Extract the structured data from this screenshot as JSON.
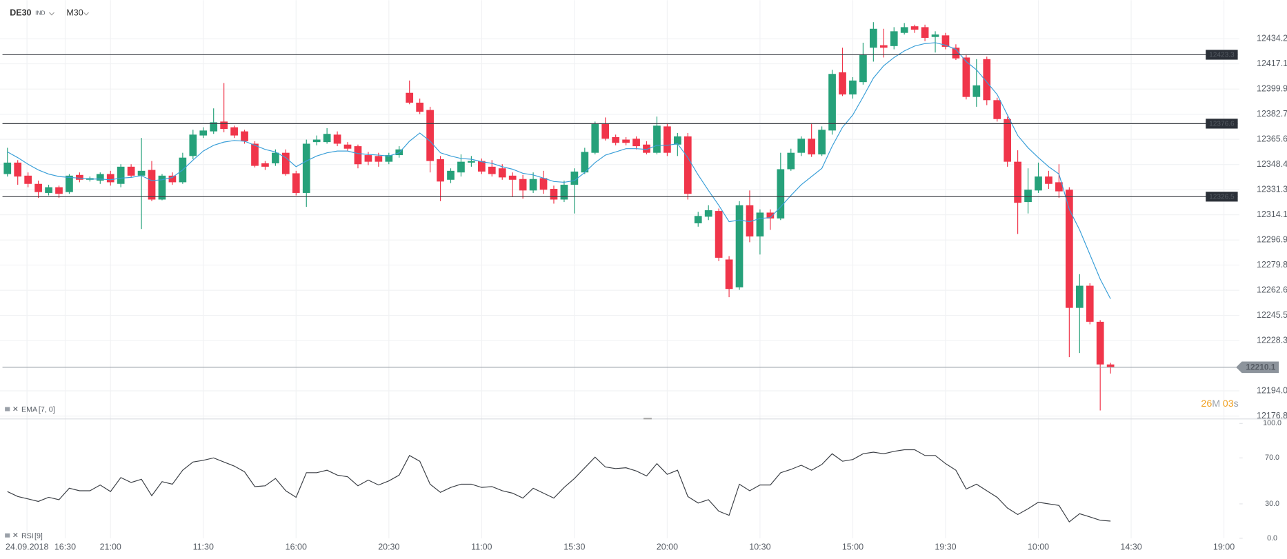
{
  "header": {
    "symbol": "DE30",
    "market": "IND",
    "timeframe": "M30"
  },
  "countdown": [
    "26",
    "M",
    "03",
    "s"
  ],
  "chart_data": [
    {
      "type": "candlestick",
      "up_color": "#26a17a",
      "down_color": "#f0354a",
      "xlim": [
        -0.72,
        119.5
      ],
      "xticks": [
        {
          "value": 1.9,
          "label": "24.09.2018"
        },
        {
          "value": 5.6,
          "label": "16:30"
        },
        {
          "value": 10,
          "label": "21:00"
        },
        {
          "value": 19,
          "label": "11:30"
        },
        {
          "value": 28,
          "label": "16:00"
        },
        {
          "value": 37,
          "label": "20:30"
        },
        {
          "value": 46,
          "label": "11:00"
        },
        {
          "value": 55,
          "label": "15:30"
        },
        {
          "value": 64,
          "label": "20:00"
        },
        {
          "value": 73,
          "label": "10:30"
        },
        {
          "value": 82,
          "label": "15:00"
        },
        {
          "value": 91,
          "label": "19:30"
        },
        {
          "value": 100,
          "label": "10:00"
        },
        {
          "value": 109,
          "label": "14:30"
        },
        {
          "value": 118,
          "label": "19:00"
        }
      ],
      "ylim": [
        12175.1,
        12460.5
      ],
      "yticks": [
        12434.2,
        12417.1,
        12399.9,
        12382.7,
        12365.6,
        12348.4,
        12331.3,
        12314.1,
        12296.9,
        12279.8,
        12262.6,
        12245.5,
        12228.3,
        {
          "value": 12194,
          "label": "12194.0"
        },
        12176.8
      ],
      "grid": true,
      "levels": [
        12423.3,
        12376.6,
        12326.5
      ],
      "last_price": 12210.1,
      "open": [
        12341.9,
        12349.7,
        12340.8,
        12335.2,
        12329.0,
        12332.9,
        12329.6,
        12341.3,
        12338.0,
        12337.4,
        12341.9,
        12335.2,
        12346.9,
        12340.8,
        12344.7,
        12324.5,
        12340.8,
        12336.3,
        12354.2,
        12368.2,
        12371.0,
        12377.7,
        12373.8,
        12371.0,
        12362.6,
        12349.2,
        12349.2,
        12356.4,
        12342.4,
        12329.0,
        12363.7,
        12363.7,
        12368.8,
        12362.0,
        12360.9,
        12354.8,
        12354.2,
        12350.3,
        12354.8,
        12397.3,
        12390.6,
        12385.6,
        12352.0,
        12338.0,
        12343.0,
        12349.7,
        12350.8,
        12346.9,
        12345.8,
        12340.8,
        12338.5,
        12330.7,
        12339.1,
        12331.8,
        12324.5,
        12334.6,
        12343.0,
        12356.4,
        12376.0,
        12367.1,
        12365.4,
        12366.0,
        12362.0,
        12356.4,
        12374.4,
        12362.0,
        12367.6,
        12308.3,
        12312.8,
        12316.7,
        12283.6,
        12264.6,
        12320.6,
        12299.3,
        12315.6,
        12311.6,
        12345.2,
        12356.4,
        12366.0,
        12355.3,
        12371.6,
        12411.3,
        12396.2,
        12404.6,
        12428.1,
        12429.8,
        12429.2,
        12438.2,
        12442.7,
        12442.1,
        12435.4,
        12436.5,
        12428.1,
        12421.4,
        12394.5,
        12420.3,
        12392.3,
        12379.4,
        12350.3,
        12322.8,
        12330.7,
        12340.2,
        12336.3,
        12331.2,
        12250.6,
        12265.7,
        12241.1,
        12212.0
      ],
      "high": [
        12359.8,
        12351.4,
        12343.0,
        12337.4,
        12334.6,
        12334.0,
        12341.9,
        12343.0,
        12340.2,
        12343.0,
        12344.1,
        12348.6,
        12348.6,
        12366.5,
        12350.8,
        12341.9,
        12343.0,
        12356.4,
        12372.1,
        12373.8,
        12386.7,
        12404.0,
        12374.9,
        12372.1,
        12364.3,
        12350.8,
        12358.7,
        12358.7,
        12344.1,
        12365.4,
        12368.2,
        12373.2,
        12371.0,
        12363.7,
        12362.0,
        12357.0,
        12356.4,
        12356.4,
        12360.9,
        12405.7,
        12393.4,
        12387.8,
        12354.2,
        12345.8,
        12355.3,
        12354.2,
        12352.5,
        12351.4,
        12348.6,
        12343.0,
        12341.3,
        12343.0,
        12344.1,
        12334.0,
        12337.4,
        12345.8,
        12359.8,
        12377.7,
        12380.5,
        12368.8,
        12367.1,
        12367.6,
        12364.3,
        12381.1,
        12376.6,
        12369.9,
        12369.9,
        12316.1,
        12320.6,
        12318.4,
        12285.9,
        12323.4,
        12330.7,
        12317.8,
        12317.8,
        12356.4,
        12359.2,
        12367.6,
        12376.6,
        12374.4,
        12413.0,
        12428.1,
        12408.0,
        12431.5,
        12445.5,
        12441.0,
        12442.1,
        12444.9,
        12443.8,
        12443.8,
        12439.3,
        12438.2,
        12430.4,
        12423.6,
        12420.3,
        12422.0,
        12394.0,
        12381.1,
        12358.1,
        12345.8,
        12349.7,
        12344.1,
        12348.6,
        12332.9,
        12273.6,
        12267.4,
        12242.2,
        12213.1
      ],
      "low": [
        12340.2,
        12334.6,
        12332.9,
        12325.6,
        12327.3,
        12325.6,
        12328.4,
        12336.3,
        12336.8,
        12335.2,
        12334.0,
        12332.9,
        12339.6,
        12304.4,
        12323.4,
        12324.0,
        12334.6,
        12335.2,
        12352.0,
        12366.5,
        12369.3,
        12370.4,
        12366.5,
        12362.6,
        12346.4,
        12344.7,
        12347.5,
        12340.8,
        12327.3,
        12319.5,
        12361.5,
        12362.6,
        12360.9,
        12357.6,
        12345.8,
        12348.0,
        12346.9,
        12348.6,
        12353.1,
        12389.5,
        12382.8,
        12343.0,
        12323.4,
        12335.7,
        12340.2,
        12346.9,
        12341.9,
        12340.2,
        12338.0,
        12326.2,
        12325.1,
        12329.0,
        12328.4,
        12321.7,
        12322.8,
        12315.0,
        12341.9,
        12355.3,
        12364.8,
        12361.5,
        12361.5,
        12358.7,
        12355.3,
        12355.3,
        12354.2,
        12354.2,
        12324.5,
        12306.0,
        12310.5,
        12282.5,
        12257.9,
        12262.9,
        12295.4,
        12287.0,
        12303.8,
        12310.5,
        12344.1,
        12354.2,
        12353.6,
        12354.2,
        12368.8,
        12395.1,
        12393.4,
        12402.9,
        12418.6,
        12421.4,
        12427.0,
        12437.1,
        12438.2,
        12432.6,
        12424.8,
        12427.0,
        12419.7,
        12392.8,
        12387.8,
        12388.9,
        12377.7,
        12346.9,
        12301.0,
        12315.0,
        12329.0,
        12331.8,
        12325.6,
        12217.0,
        12219.8,
        12239.4,
        12180.6,
        12205.8
      ],
      "close": [
        12349.7,
        12340.2,
        12335.2,
        12329.6,
        12332.9,
        12328.4,
        12340.8,
        12338.0,
        12339.1,
        12341.9,
        12336.3,
        12346.9,
        12340.8,
        12344.1,
        12324.5,
        12340.8,
        12336.3,
        12353.1,
        12368.8,
        12371.6,
        12377.2,
        12372.7,
        12368.2,
        12364.3,
        12347.5,
        12346.9,
        12356.4,
        12341.9,
        12329.0,
        12362.6,
        12365.4,
        12369.3,
        12362.6,
        12359.2,
        12348.6,
        12350.3,
        12350.3,
        12354.8,
        12358.7,
        12390.6,
        12384.4,
        12350.8,
        12336.8,
        12344.1,
        12350.3,
        12350.8,
        12343.6,
        12341.9,
        12339.6,
        12338.0,
        12330.7,
        12338.5,
        12331.2,
        12324.5,
        12334.6,
        12343.6,
        12357.0,
        12376.0,
        12366.0,
        12363.2,
        12363.2,
        12360.9,
        12356.4,
        12374.9,
        12356.4,
        12367.6,
        12328.4,
        12313.3,
        12317.2,
        12284.8,
        12263.5,
        12320.6,
        12299.3,
        12315.6,
        12311.6,
        12345.2,
        12356.4,
        12366.0,
        12355.3,
        12372.1,
        12410.2,
        12396.2,
        12405.7,
        12423.6,
        12441.0,
        12428.1,
        12439.3,
        12442.1,
        12440.4,
        12434.8,
        12437.1,
        12428.7,
        12420.8,
        12394.5,
        12402.4,
        12392.3,
        12379.4,
        12350.3,
        12322.3,
        12331.2,
        12340.2,
        12335.2,
        12330.1,
        12250.6,
        12265.7,
        12241.1,
        12212.0,
        12210.1
      ],
      "series": [
        {
          "name": "EMA",
          "params": "[7, 0]",
          "color": "#3a9fd8",
          "values": [
            12357.0,
            12353.1,
            12348.6,
            12344.7,
            12341.9,
            12340.2,
            12339.6,
            12339.1,
            12338.5,
            12338.5,
            12338.0,
            12339.1,
            12339.6,
            12340.8,
            12337.4,
            12338.0,
            12339.6,
            12344.7,
            12351.4,
            12357.6,
            12361.5,
            12363.7,
            12364.8,
            12364.3,
            12361.5,
            12358.7,
            12357.0,
            12353.1,
            12346.9,
            12350.8,
            12354.2,
            12356.4,
            12357.6,
            12357.6,
            12355.9,
            12355.3,
            12354.8,
            12354.2,
            12356.4,
            12364.3,
            12369.9,
            12364.3,
            12356.4,
            12354.2,
            12352.5,
            12352.0,
            12350.3,
            12349.2,
            12346.9,
            12345.2,
            12342.4,
            12341.3,
            12339.1,
            12336.8,
            12336.3,
            12337.4,
            12343.0,
            12349.7,
            12354.8,
            12357.0,
            12359.2,
            12359.2,
            12358.7,
            12361.5,
            12361.5,
            12362.6,
            12353.1,
            12341.3,
            12330.7,
            12320.6,
            12309.4,
            12310.5,
            12309.4,
            12311.6,
            12312.2,
            12319.5,
            12327.3,
            12334.6,
            12340.2,
            12345.8,
            12360.9,
            12373.8,
            12382.2,
            12394.5,
            12407.4,
            12415.8,
            12421.4,
            12425.9,
            12429.2,
            12430.9,
            12431.5,
            12429.8,
            12427.0,
            12418.6,
            12413.0,
            12404.6,
            12396.2,
            12382.2,
            12368.2,
            12359.8,
            12353.1,
            12346.9,
            12341.9,
            12317.8,
            12303.8,
            12287.0,
            12270.2,
            12256.8
          ]
        }
      ]
    },
    {
      "type": "line",
      "ylim": [
        0,
        100
      ],
      "yticks": [
        {
          "value": 100,
          "label": "100.0"
        },
        {
          "value": 70,
          "label": "70.0"
        },
        {
          "value": 30,
          "label": "30.0"
        },
        {
          "value": 0,
          "label": "0.0"
        }
      ],
      "series": [
        {
          "name": "RSI",
          "params": "[9]",
          "color": "#3b3f45",
          "values": [
            40.7,
            36.4,
            34.3,
            32.1,
            35.7,
            33.6,
            43.6,
            41.4,
            41.4,
            46.4,
            40.7,
            52.9,
            48.6,
            51.4,
            37.1,
            49.3,
            47.1,
            59.3,
            66.4,
            67.9,
            70.0,
            66.4,
            62.9,
            57.9,
            45.0,
            45.7,
            52.1,
            41.4,
            35.7,
            57.1,
            57.1,
            59.3,
            55.0,
            53.6,
            45.7,
            50.7,
            46.4,
            50.0,
            55.0,
            72.1,
            67.1,
            47.1,
            40.0,
            44.3,
            47.1,
            47.1,
            44.3,
            45.0,
            41.4,
            39.3,
            35.0,
            43.6,
            39.3,
            35.0,
            44.3,
            52.1,
            61.4,
            70.7,
            62.1,
            60.7,
            61.4,
            58.6,
            54.3,
            65.0,
            55.7,
            59.3,
            36.4,
            30.7,
            33.6,
            23.6,
            20.0,
            47.1,
            41.4,
            46.4,
            46.4,
            57.1,
            60.0,
            63.6,
            59.3,
            64.3,
            73.6,
            67.1,
            68.6,
            73.6,
            75.0,
            73.6,
            75.7,
            77.1,
            77.1,
            72.1,
            72.1,
            65.0,
            59.3,
            42.9,
            47.1,
            41.4,
            35.7,
            26.4,
            20.7,
            25.7,
            31.4,
            30.0,
            28.6,
            14.3,
            21.4,
            18.6,
            15.7,
            15.0
          ]
        }
      ]
    }
  ]
}
